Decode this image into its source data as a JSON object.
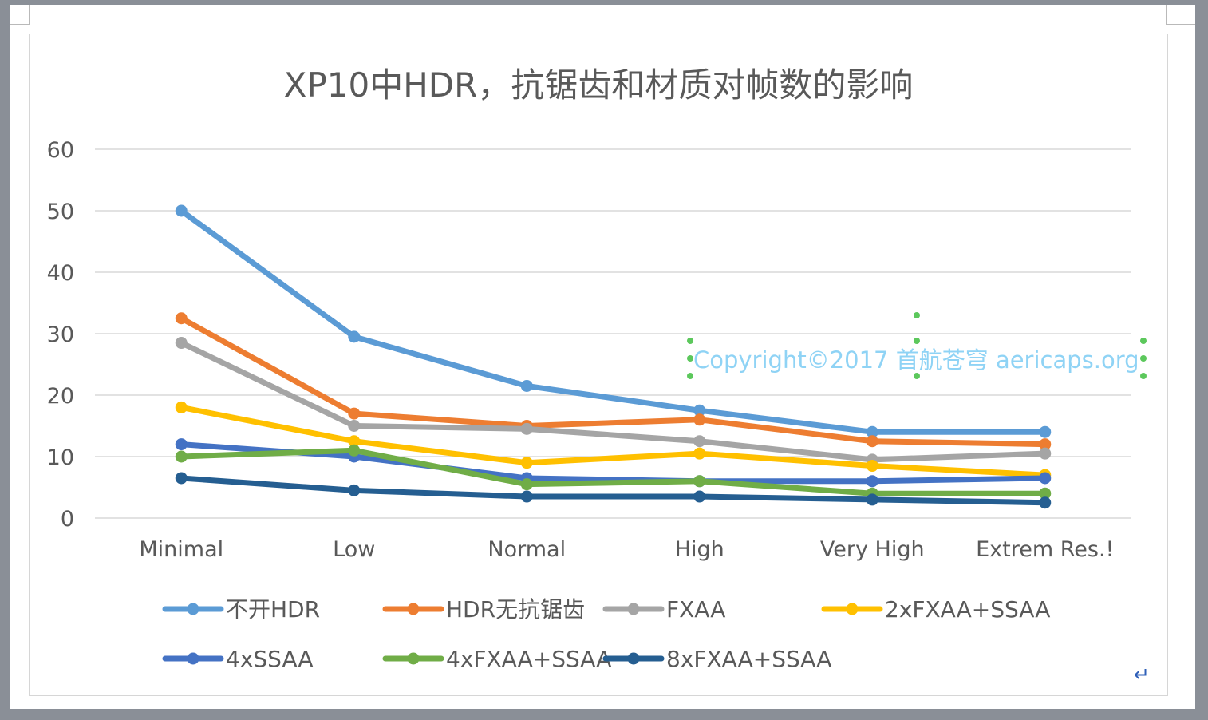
{
  "chart_data": {
    "type": "line",
    "title": "XP10中HDR，抗锯齿和材质对帧数的影响",
    "xlabel": "",
    "ylabel": "",
    "categories": [
      "Minimal",
      "Low",
      "Normal",
      "High",
      "Very High",
      "Extrem Res.!"
    ],
    "ylim": [
      0,
      60
    ],
    "yticks": [
      0,
      10,
      20,
      30,
      40,
      50,
      60
    ],
    "grid": true,
    "legend_position": "bottom",
    "series": [
      {
        "name": "不开HDR",
        "color": "#5b9bd5",
        "values": [
          50,
          29.5,
          21.5,
          17.5,
          14,
          14
        ]
      },
      {
        "name": "HDR无抗锯齿",
        "color": "#ed7d31",
        "values": [
          32.5,
          17,
          15,
          16,
          12.5,
          12
        ]
      },
      {
        "name": "FXAA",
        "color": "#a5a5a5",
        "values": [
          28.5,
          15,
          14.5,
          12.5,
          9.5,
          10.5
        ]
      },
      {
        "name": "2xFXAA+SSAA",
        "color": "#ffc000",
        "values": [
          18,
          12.5,
          9,
          10.5,
          8.5,
          7
        ]
      },
      {
        "name": "4xSSAA",
        "color": "#4472c4",
        "values": [
          12,
          10,
          6.5,
          6,
          6,
          6.5
        ]
      },
      {
        "name": "4xFXAA+SSAA",
        "color": "#70ad47",
        "values": [
          10,
          11,
          5.5,
          6,
          4,
          4
        ]
      },
      {
        "name": "8xFXAA+SSAA",
        "color": "#255e91",
        "values": [
          6.5,
          4.5,
          3.5,
          3.5,
          3,
          2.5
        ]
      }
    ]
  },
  "watermark": {
    "text": "Copyright©2017 首航苍穹 aericaps.org",
    "color": "#8fd3f5",
    "handle_color": "#5cc85c"
  },
  "colors": {
    "grid": "#d9d9d9",
    "axis_text": "#595959",
    "title_text": "#595959"
  }
}
